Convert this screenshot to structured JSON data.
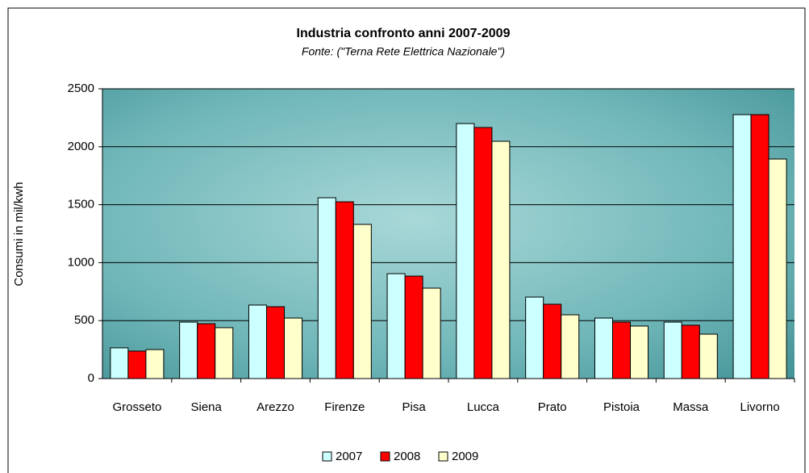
{
  "chart_data": {
    "type": "bar",
    "title": "Industria confronto anni 2007-2009",
    "subtitle": "Fonte: (\"Terna Rete Elettrica Nazionale\")",
    "y_label": "Consumi in mil/kwh",
    "categories": [
      "Grosseto",
      "Siena",
      "Arezzo",
      "Firenze",
      "Pisa",
      "Lucca",
      "Prato",
      "Pistoia",
      "Massa",
      "Livorno"
    ],
    "series": [
      {
        "name": "2007",
        "color": "#ccffff",
        "values": [
          265,
          487,
          634,
          1560,
          905,
          2200,
          703,
          522,
          487,
          2277
        ]
      },
      {
        "name": "2008",
        "color": "#ff0000",
        "values": [
          237,
          473,
          620,
          1525,
          884,
          2166,
          641,
          487,
          460,
          2277
        ]
      },
      {
        "name": "2009",
        "color": "#ffffcc",
        "values": [
          250,
          439,
          522,
          1330,
          780,
          2047,
          550,
          453,
          383,
          1894
        ]
      }
    ],
    "ylim": [
      0,
      2500
    ],
    "yticks": [
      0,
      500,
      1000,
      1500,
      2000,
      2500
    ],
    "grid": true,
    "legend": "bottom"
  }
}
